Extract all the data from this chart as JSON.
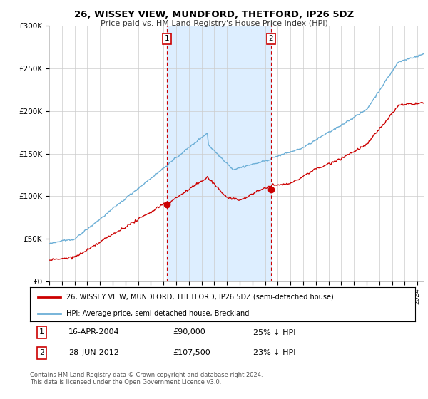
{
  "title": "26, WISSEY VIEW, MUNDFORD, THETFORD, IP26 5DZ",
  "subtitle": "Price paid vs. HM Land Registry's House Price Index (HPI)",
  "legend_line1": "26, WISSEY VIEW, MUNDFORD, THETFORD, IP26 5DZ (semi-detached house)",
  "legend_line2": "HPI: Average price, semi-detached house, Breckland",
  "footnote": "Contains HM Land Registry data © Crown copyright and database right 2024.\nThis data is licensed under the Open Government Licence v3.0.",
  "sale1_date": "16-APR-2004",
  "sale1_price": "£90,000",
  "sale1_hpi": "25% ↓ HPI",
  "sale2_date": "28-JUN-2012",
  "sale2_price": "£107,500",
  "sale2_hpi": "23% ↓ HPI",
  "sale1_year": 2004.29,
  "sale2_year": 2012.46,
  "sale1_price_val": 90000,
  "sale2_price_val": 107500,
  "hpi_color": "#6aaed6",
  "price_color": "#cc0000",
  "vline_color": "#cc0000",
  "shade_color": "#ddeeff",
  "background_color": "#ffffff",
  "grid_color": "#cccccc",
  "ylim": [
    0,
    300000
  ],
  "yticks": [
    0,
    50000,
    100000,
    150000,
    200000,
    250000,
    300000
  ],
  "ytick_labels": [
    "£0",
    "£50K",
    "£100K",
    "£150K",
    "£200K",
    "£250K",
    "£300K"
  ],
  "xlim_start": 1995.0,
  "xlim_end": 2024.5
}
